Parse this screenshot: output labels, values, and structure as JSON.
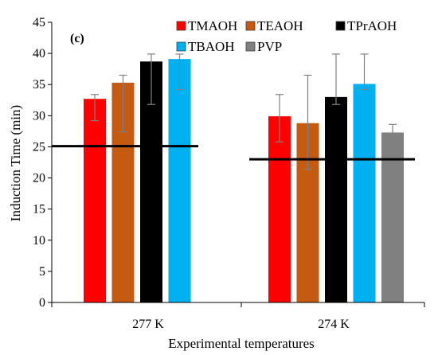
{
  "chart_data": {
    "type": "bar",
    "panel_label": "(c)",
    "xlabel": "Experimental temperatures",
    "ylabel": "Induction Time (min)",
    "ylim": [
      0,
      45
    ],
    "yticks": [
      0,
      5,
      10,
      15,
      20,
      25,
      30,
      35,
      40,
      45
    ],
    "categories": [
      "277 K",
      "274 K"
    ],
    "legend_position": "top",
    "series": [
      {
        "name": "TMAOH",
        "color": "#ff0000",
        "values": [
          32.7,
          29.9
        ],
        "err_low": [
          29.2,
          25.8
        ],
        "err_high": [
          33.4,
          33.4
        ]
      },
      {
        "name": "TEAOH",
        "color": "#c55a11",
        "values": [
          35.3,
          28.8
        ],
        "err_low": [
          27.4,
          21.4
        ],
        "err_high": [
          36.5,
          36.5
        ]
      },
      {
        "name": "TPrAOH",
        "color": "#000000",
        "values": [
          38.7,
          33.0
        ],
        "err_low": [
          31.8,
          31.8
        ],
        "err_high": [
          39.9,
          39.9
        ]
      },
      {
        "name": "TBAOH",
        "color": "#00b0f0",
        "values": [
          39.1,
          35.1
        ],
        "err_low": [
          34.2,
          34.2
        ],
        "err_high": [
          39.9,
          39.9
        ]
      },
      {
        "name": "PVP",
        "color": "#808080",
        "values": [
          null,
          27.3
        ],
        "err_low": [
          null,
          25.8
        ],
        "err_high": [
          null,
          28.6
        ]
      }
    ],
    "reference_lines": [
      {
        "category": "277 K",
        "value": 25.1
      },
      {
        "category": "274 K",
        "value": 23.0
      }
    ]
  }
}
